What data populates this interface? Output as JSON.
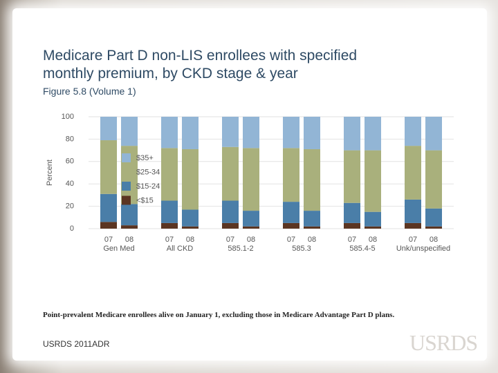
{
  "slide": {
    "title": "Medicare Part D non-LIS enrollees with specified monthly premium, by CKD stage & year",
    "subtitle": "Figure 5.8 (Volume 1)",
    "footnote": "Point-prevalent Medicare enrollees alive on January 1, excluding those in Medicare Advantage Part D plans.",
    "source": "USRDS 2011ADR",
    "logo": "USRDS"
  },
  "chart_data": {
    "type": "stacked_bar",
    "y_label": "Percent",
    "categories": [
      "07",
      "08",
      "07",
      "08",
      "07",
      "08",
      "07",
      "08",
      "07",
      "08",
      "07",
      "08"
    ],
    "groups": [
      "Gen Med",
      "All CKD",
      "585.1-2",
      "585.3",
      "585.4-5",
      "Unk/unspecified"
    ],
    "series": [
      {
        "name": "<$15",
        "color": "#5b3522",
        "values": [
          6,
          3,
          5,
          2,
          5,
          2,
          5,
          2,
          5,
          2,
          5,
          2
        ]
      },
      {
        "name": "$15-24",
        "color": "#4a7ea8",
        "values": [
          25,
          19,
          20,
          15,
          20,
          14,
          19,
          14,
          18,
          13,
          21,
          16
        ]
      },
      {
        "name": "$25-34",
        "color": "#a9b07c",
        "values": [
          48,
          52,
          47,
          54,
          48,
          56,
          48,
          55,
          47,
          55,
          48,
          52
        ]
      },
      {
        "name": "$35+",
        "color": "#92b5d5",
        "values": [
          21,
          26,
          28,
          29,
          27,
          28,
          28,
          29,
          30,
          30,
          26,
          30
        ]
      }
    ],
    "ylim": [
      0,
      100
    ],
    "yticks": [
      0,
      20,
      40,
      60,
      80,
      100
    ],
    "grid": true,
    "legend": "upper left"
  }
}
